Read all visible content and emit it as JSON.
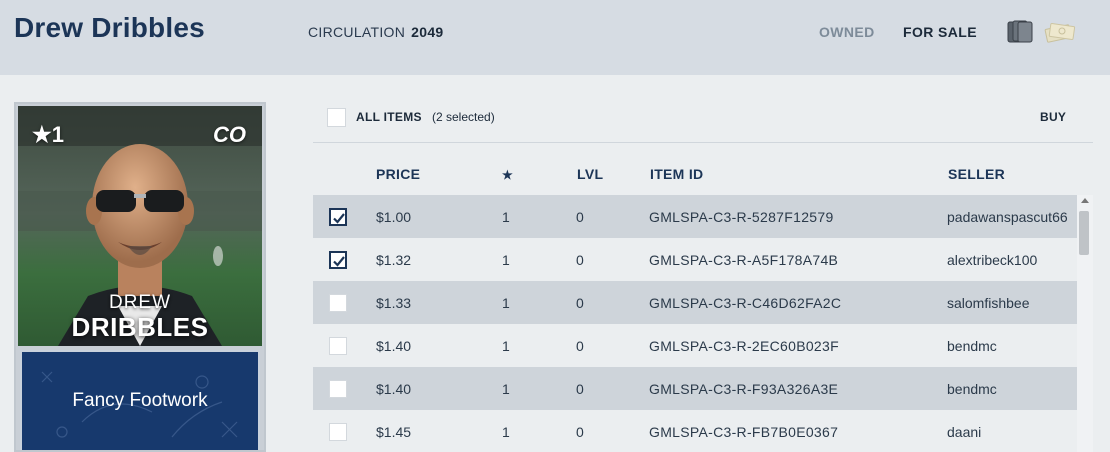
{
  "header": {
    "title": "Drew Dribbles",
    "circulation_label": "CIRCULATION",
    "circulation_value": "2049",
    "tab_owned": "OWNED",
    "tab_for_sale": "FOR SALE",
    "icons": [
      "cards-icon",
      "money-icon"
    ]
  },
  "card": {
    "stars": "★1",
    "position": "CO",
    "first_name": "DREW",
    "last_name": "DRIBBLES",
    "ability": "Fancy Footwork"
  },
  "toolbar": {
    "all_items_label": "ALL ITEMS",
    "selected_count": "(2 selected)",
    "buy_label": "BUY"
  },
  "table": {
    "headers": {
      "price": "PRICE",
      "star": "★",
      "level": "LVL",
      "item_id": "ITEM ID",
      "seller": "SELLER"
    },
    "rows": [
      {
        "checked": true,
        "price": "$1.00",
        "star": "1",
        "level": "0",
        "item_id": "GMLSPA-C3-R-5287F12579",
        "seller": "padawanspascut66"
      },
      {
        "checked": true,
        "price": "$1.32",
        "star": "1",
        "level": "0",
        "item_id": "GMLSPA-C3-R-A5F178A74B",
        "seller": "alextribeck100"
      },
      {
        "checked": false,
        "price": "$1.33",
        "star": "1",
        "level": "0",
        "item_id": "GMLSPA-C3-R-C46D62FA2C",
        "seller": "salomfishbee"
      },
      {
        "checked": false,
        "price": "$1.40",
        "star": "1",
        "level": "0",
        "item_id": "GMLSPA-C3-R-2EC60B023F",
        "seller": "bendmc"
      },
      {
        "checked": false,
        "price": "$1.40",
        "star": "1",
        "level": "0",
        "item_id": "GMLSPA-C3-R-F93A326A3E",
        "seller": "bendmc"
      },
      {
        "checked": false,
        "price": "$1.45",
        "star": "1",
        "level": "0",
        "item_id": "GMLSPA-C3-R-FB7B0E0367",
        "seller": "daani"
      }
    ]
  },
  "colors": {
    "header_bg": "#d6dce3",
    "title": "#1c3557",
    "row_shade": "#ced4da",
    "ability_bg": "#17396d"
  }
}
